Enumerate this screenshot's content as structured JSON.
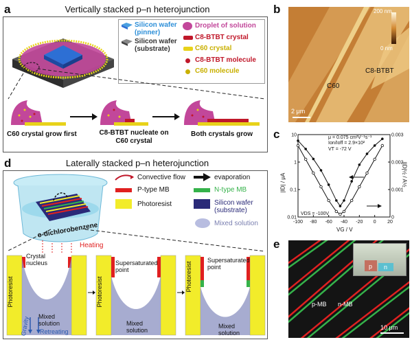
{
  "panel_a": {
    "letter": "a",
    "title": "Vertically stacked p–n heterojunction",
    "legend": {
      "pinner": "Silicon wafer (pinner)",
      "substrate": "Silicon wafer (substrate)",
      "droplet": "Droplet of solution",
      "c8_crystal": "C8-BTBT crystal",
      "c60_crystal": "C60 crystal",
      "c8_molecule": "C8-BTBT molecule",
      "c60_molecule": "C60 molecule"
    },
    "steps": [
      "C60 crystal grow first",
      "C8-BTBT nucleate on C60 crystal",
      "Both crystals grow"
    ]
  },
  "panel_b": {
    "letter": "b",
    "scale_top": "200 nm",
    "scale_bottom": "0 nm",
    "label_c8": "C8-BTBT",
    "label_c60": "C60",
    "scalebar": "2 μm"
  },
  "panel_c": {
    "letter": "c",
    "annotations": [
      "μ = 0.075 cm²V⁻¹s⁻¹",
      "Ion/Ioff = 2.9×10²",
      "VT = -72 V"
    ],
    "vds": "VDS = -100V",
    "xlabel": "VG / V",
    "ylabel_left": "|ID| / μA",
    "ylabel_right": "|ID|½ / A½"
  },
  "chart_data": {
    "type": "line",
    "xlabel": "VG / V",
    "ylabel": "|ID| / μA",
    "ylabel_right": "|ID|½ / A½",
    "xlim": [
      -100,
      20
    ],
    "ylim_left": [
      0.01,
      10
    ],
    "ylim_right": [
      0,
      0.003
    ],
    "xticks": [
      -100,
      -80,
      -60,
      -40,
      -20,
      0,
      20
    ],
    "yticks_left": [
      "10",
      "1",
      "0.1",
      "0.01"
    ],
    "yticks_right": [
      "0.003",
      "0.002",
      "0.001",
      "0"
    ],
    "series": [
      {
        "axis": "left-log",
        "x": [
          -100,
          -90,
          -80,
          -70,
          -60,
          -50,
          -45,
          -40,
          -30,
          -20,
          -10,
          0,
          10
        ],
        "values": [
          6.0,
          3.0,
          1.3,
          0.5,
          0.15,
          0.04,
          0.025,
          0.04,
          0.2,
          0.8,
          2.0,
          4.0,
          7.0
        ]
      },
      {
        "axis": "right-linear",
        "x": [
          -100,
          -90,
          -80,
          -70,
          -60,
          -50,
          -45,
          -40,
          -30,
          -20,
          -10,
          0,
          10
        ],
        "values": [
          0.0026,
          0.0021,
          0.0016,
          0.0011,
          0.0006,
          0.0002,
          0.0001,
          0.0002,
          0.0006,
          0.0011,
          0.0016,
          0.0021,
          0.0026
        ]
      }
    ]
  },
  "panel_d": {
    "letter": "d",
    "title": "Laterally stacked p–n heterojunction",
    "legend": {
      "convective": "Convective flow",
      "evaporation": "evaporation",
      "ptype": "P-type MB",
      "ntype": "N-type MB",
      "photoresist": "Photoresist",
      "wafer": "Silicon wafer (substrate)",
      "mixed": "Mixed solution"
    },
    "solvent": "o-dichlorobenzene",
    "heating": "Heating",
    "photoresist": "Photoresist",
    "crystal_nucleus": "Crystal nucleus",
    "mixed_solution": "Mixed solution",
    "gravity": "Gravity",
    "retreating": "Retreating",
    "supersaturated": "Supersaturated point"
  },
  "panel_e": {
    "letter": "e",
    "p_mb": "p-MB",
    "n_mb": "n-MB",
    "inset_p": "p",
    "inset_n": "n",
    "scalebar": "10 μm"
  },
  "colors": {
    "droplet": "#c2479a",
    "c8": "#c0182a",
    "c60": "#e8d21a",
    "photoresist": "#f2ec2a",
    "wafer_blue": "#2a2a78",
    "pmb": "#e02020",
    "nmb": "#35b24a",
    "afm": "#c9873b"
  }
}
